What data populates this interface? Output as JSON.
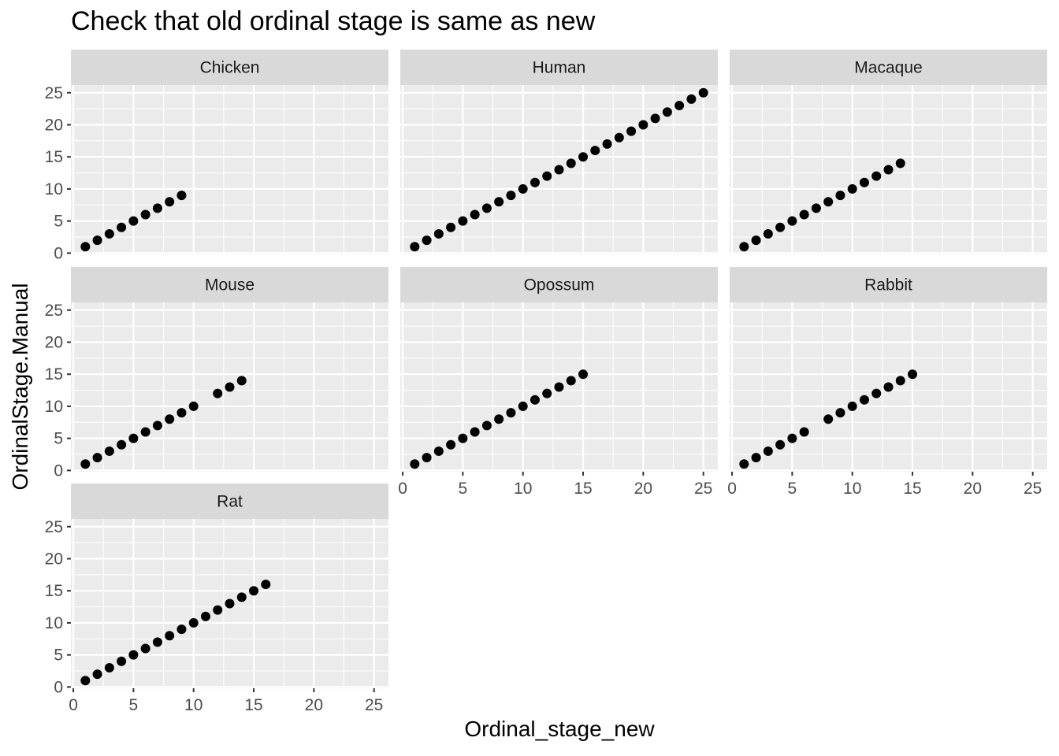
{
  "chart_data": {
    "type": "scatter",
    "title": "Check that old ordinal stage is same as new",
    "xlabel": "Ordinal_stage_new",
    "ylabel": "OrdinalStage.Manual",
    "xlim": [
      0,
      25
    ],
    "ylim": [
      0,
      25
    ],
    "x_ticks": [
      0,
      5,
      10,
      15,
      20,
      25
    ],
    "y_ticks": [
      0,
      5,
      10,
      15,
      20,
      25
    ],
    "grid": true,
    "facets": [
      {
        "name": "Chicken",
        "points": [
          [
            1,
            1
          ],
          [
            2,
            2
          ],
          [
            3,
            3
          ],
          [
            4,
            4
          ],
          [
            5,
            5
          ],
          [
            6,
            6
          ],
          [
            7,
            7
          ],
          [
            8,
            8
          ],
          [
            9,
            9
          ]
        ]
      },
      {
        "name": "Human",
        "points": [
          [
            1,
            1
          ],
          [
            2,
            2
          ],
          [
            3,
            3
          ],
          [
            4,
            4
          ],
          [
            5,
            5
          ],
          [
            6,
            6
          ],
          [
            7,
            7
          ],
          [
            8,
            8
          ],
          [
            9,
            9
          ],
          [
            10,
            10
          ],
          [
            11,
            11
          ],
          [
            12,
            12
          ],
          [
            13,
            13
          ],
          [
            14,
            14
          ],
          [
            15,
            15
          ],
          [
            16,
            16
          ],
          [
            17,
            17
          ],
          [
            18,
            18
          ],
          [
            19,
            19
          ],
          [
            20,
            20
          ],
          [
            21,
            21
          ],
          [
            22,
            22
          ],
          [
            23,
            23
          ],
          [
            24,
            24
          ],
          [
            25,
            25
          ]
        ]
      },
      {
        "name": "Macaque",
        "points": [
          [
            1,
            1
          ],
          [
            2,
            2
          ],
          [
            3,
            3
          ],
          [
            4,
            4
          ],
          [
            5,
            5
          ],
          [
            6,
            6
          ],
          [
            7,
            7
          ],
          [
            8,
            8
          ],
          [
            9,
            9
          ],
          [
            10,
            10
          ],
          [
            11,
            11
          ],
          [
            12,
            12
          ],
          [
            13,
            13
          ],
          [
            14,
            14
          ]
        ]
      },
      {
        "name": "Mouse",
        "points": [
          [
            1,
            1
          ],
          [
            2,
            2
          ],
          [
            3,
            3
          ],
          [
            4,
            4
          ],
          [
            5,
            5
          ],
          [
            6,
            6
          ],
          [
            7,
            7
          ],
          [
            8,
            8
          ],
          [
            9,
            9
          ],
          [
            10,
            10
          ],
          [
            12,
            12
          ],
          [
            13,
            13
          ],
          [
            14,
            14
          ]
        ]
      },
      {
        "name": "Opossum",
        "points": [
          [
            1,
            1
          ],
          [
            2,
            2
          ],
          [
            3,
            3
          ],
          [
            4,
            4
          ],
          [
            5,
            5
          ],
          [
            6,
            6
          ],
          [
            7,
            7
          ],
          [
            8,
            8
          ],
          [
            9,
            9
          ],
          [
            10,
            10
          ],
          [
            11,
            11
          ],
          [
            12,
            12
          ],
          [
            13,
            13
          ],
          [
            14,
            14
          ],
          [
            15,
            15
          ]
        ]
      },
      {
        "name": "Rabbit",
        "points": [
          [
            1,
            1
          ],
          [
            2,
            2
          ],
          [
            3,
            3
          ],
          [
            4,
            4
          ],
          [
            5,
            5
          ],
          [
            6,
            6
          ],
          [
            8,
            8
          ],
          [
            9,
            9
          ],
          [
            10,
            10
          ],
          [
            11,
            11
          ],
          [
            12,
            12
          ],
          [
            13,
            13
          ],
          [
            14,
            14
          ],
          [
            15,
            15
          ]
        ]
      },
      {
        "name": "Rat",
        "points": [
          [
            1,
            1
          ],
          [
            2,
            2
          ],
          [
            3,
            3
          ],
          [
            4,
            4
          ],
          [
            5,
            5
          ],
          [
            6,
            6
          ],
          [
            7,
            7
          ],
          [
            8,
            8
          ],
          [
            9,
            9
          ],
          [
            10,
            10
          ],
          [
            11,
            11
          ],
          [
            12,
            12
          ],
          [
            13,
            13
          ],
          [
            14,
            14
          ],
          [
            15,
            15
          ],
          [
            16,
            16
          ]
        ]
      }
    ],
    "colors": {
      "panel_bg": "#ebebeb",
      "strip_bg": "#d9d9d9",
      "grid_major": "#ffffff",
      "point": "#000000",
      "tick_text": "#4d4d4d"
    }
  }
}
